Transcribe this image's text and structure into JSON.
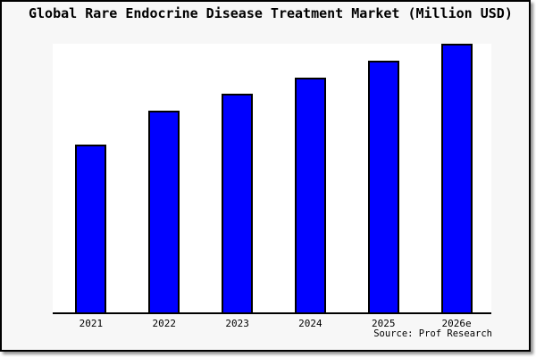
{
  "chart_data": {
    "type": "bar",
    "title": "Global Rare Endocrine Disease Treatment Market (Million USD)",
    "categories": [
      "2021",
      "2022",
      "2023",
      "2024",
      "2025",
      "2026e"
    ],
    "values": [
      100,
      120,
      130,
      140,
      150,
      160
    ],
    "values_are_estimates": true,
    "value_scale_note": "no y-axis ticks or data labels shown; bar heights estimated relative to 2021=100",
    "xlabel": "",
    "ylabel": "",
    "ylim": [
      0,
      160
    ],
    "grid": false,
    "legend": false,
    "bar_color": "#0000ff",
    "bar_border_color": "#000000",
    "axis_color": "#000000",
    "plot_background": "#ffffff",
    "background": "#f7f7f7",
    "source": "Source: Prof Research"
  }
}
